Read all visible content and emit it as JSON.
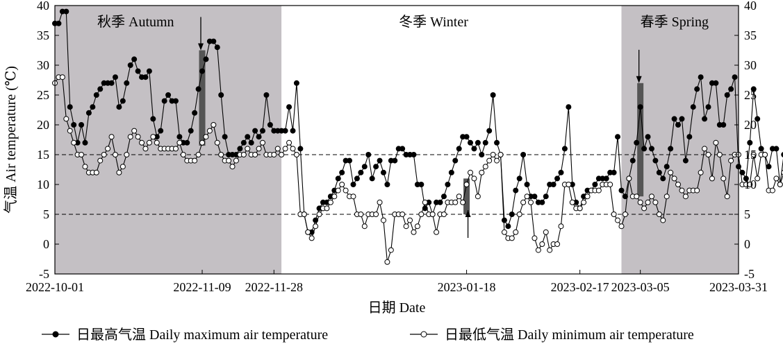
{
  "chart_data": {
    "type": "line",
    "xlabel": "日期 Date",
    "ylabel": "气温 Air temperature (℃)",
    "ylim": [
      -5,
      40
    ],
    "y_ticks": [
      -5,
      0,
      5,
      10,
      15,
      20,
      25,
      30,
      35,
      40
    ],
    "x_range": [
      "2022-10-01",
      "2023-03-31"
    ],
    "x_ticks": [
      "2022-10-01",
      "2022-11-09",
      "2022-11-28",
      "2023-01-18",
      "2023-02-17",
      "2023-03-05",
      "2023-03-31"
    ],
    "reference_lines": [
      15,
      5
    ],
    "seasons": [
      {
        "label": "秋季 Autumn",
        "start": "2022-10-01",
        "end": "2022-11-30",
        "color": "#c4c0c4"
      },
      {
        "label": "冬季 Winter",
        "start": "2022-11-30",
        "end": "2023-02-28",
        "color": "#ffffff"
      },
      {
        "label": "春季 Spring",
        "start": "2023-02-28",
        "end": "2023-03-31",
        "color": "#c4c0c4"
      }
    ],
    "transition_markers": [
      {
        "date": "2022-11-09",
        "y_low": 16.5,
        "y_high": 32.5,
        "arrow": "down"
      },
      {
        "date": "2023-01-18",
        "y_low": 5,
        "y_high": 11,
        "arrow": "up"
      },
      {
        "date": "2023-03-05",
        "y_low": 8,
        "y_high": 27,
        "arrow": "down"
      }
    ],
    "start_date": "2022-10-01",
    "series": [
      {
        "name": "日最高气温 Daily maximum air temperature",
        "marker": "filled",
        "values": [
          37,
          37,
          39,
          39,
          23,
          20,
          17,
          20,
          17,
          22,
          23,
          25,
          26,
          27,
          27,
          27,
          28,
          23,
          24,
          27,
          30,
          31,
          29,
          28,
          28,
          29,
          21,
          18,
          19,
          24,
          25,
          24,
          24,
          18,
          17,
          17,
          19,
          22,
          26,
          29,
          31,
          34,
          34,
          33,
          25,
          18,
          15,
          15,
          15,
          16,
          17,
          18,
          17,
          19,
          18,
          19,
          25,
          20,
          19,
          19,
          19,
          19,
          23,
          19,
          27,
          16,
          5,
          2,
          2,
          4,
          6,
          7,
          7,
          8,
          9,
          11,
          12,
          14,
          14,
          10,
          11,
          12,
          13,
          15,
          11,
          13,
          14,
          12,
          10,
          14,
          14,
          16,
          16,
          15,
          15,
          15,
          10,
          10,
          6,
          7,
          5,
          7,
          7,
          8,
          10,
          12,
          14,
          16,
          18,
          18,
          17,
          16,
          17,
          15,
          17,
          19,
          25,
          17,
          15,
          4,
          3,
          5,
          9,
          11,
          15,
          10,
          8,
          8,
          7,
          7,
          8,
          10,
          10,
          11,
          12,
          16,
          23,
          10,
          7,
          6,
          8,
          9,
          9,
          10,
          11,
          11,
          11,
          12,
          12,
          18,
          9,
          8,
          11,
          14,
          17,
          23,
          16,
          18,
          16,
          14,
          12,
          11,
          13,
          16,
          21,
          20,
          21,
          14,
          18,
          23,
          26,
          28,
          21,
          23,
          27,
          27,
          20,
          20,
          25,
          26,
          28,
          13,
          12,
          11,
          17,
          26,
          21,
          16,
          15,
          13,
          16,
          16,
          10,
          15,
          16,
          16,
          22
        ]
      },
      {
        "name": "日最低气温 Daily minimum air temperature",
        "marker": "open",
        "values": [
          27,
          28,
          28,
          21,
          19,
          17,
          15,
          15,
          13,
          12,
          12,
          12,
          14,
          15,
          16,
          18,
          15,
          12,
          13,
          15,
          18,
          19,
          18,
          17,
          16,
          17,
          18,
          17,
          16,
          16,
          16,
          16,
          16,
          17,
          15,
          14,
          14,
          14,
          15,
          17,
          18,
          19,
          20,
          17,
          15,
          14,
          14,
          13,
          14,
          15,
          15,
          16,
          15,
          15,
          16,
          17,
          15,
          15,
          15,
          16,
          15,
          16,
          17,
          16,
          15,
          5,
          5,
          2,
          1,
          3,
          5,
          6,
          6,
          7,
          8,
          9,
          10,
          9,
          8,
          8,
          5,
          5,
          3,
          5,
          5,
          5,
          7,
          4,
          -3,
          -1,
          5,
          5,
          5,
          3,
          4,
          2,
          3,
          5,
          7,
          5,
          5,
          2,
          5,
          5,
          7,
          7,
          7,
          8,
          7,
          10,
          12,
          11,
          8,
          12,
          13,
          14,
          15,
          14,
          15,
          2,
          1,
          1,
          2,
          5,
          7,
          8,
          7,
          1,
          -1,
          0,
          2,
          -1,
          0,
          0,
          3,
          10,
          10,
          7,
          6,
          6,
          7,
          8,
          9,
          9,
          9,
          10,
          10,
          10,
          5,
          4,
          3,
          5,
          11,
          8,
          8,
          7,
          6,
          7,
          8,
          7,
          5,
          4,
          8,
          12,
          11,
          10,
          9,
          8,
          9,
          9,
          9,
          12,
          16,
          15,
          11,
          17,
          15,
          11,
          8,
          14,
          15,
          15,
          10,
          10,
          10,
          15,
          11,
          15,
          15,
          9,
          9,
          11,
          10,
          12,
          13,
          13,
          15
        ]
      }
    ]
  }
}
